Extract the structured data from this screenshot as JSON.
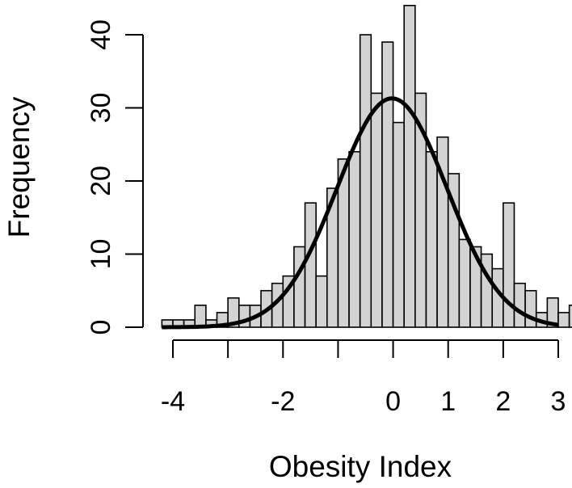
{
  "chart_data": {
    "type": "bar",
    "title": "",
    "xlabel": "Obesity Index",
    "ylabel": "Frequency",
    "bin_start": -4.2,
    "bin_width": 0.2,
    "values": [
      1,
      1,
      1,
      3,
      1,
      2,
      4,
      3,
      3,
      5,
      6,
      7,
      11,
      17,
      7,
      19,
      23,
      24,
      40,
      32,
      39,
      28,
      44,
      32,
      24,
      26,
      21,
      12,
      11,
      10,
      8,
      17,
      6,
      5,
      2,
      4,
      2,
      3
    ],
    "xlim": [
      -4.2,
      3.0
    ],
    "ylim": [
      0,
      44
    ],
    "x_ticks": [
      -4,
      -3,
      -2,
      -1,
      0,
      1,
      2,
      3
    ],
    "x_tick_labels": [
      "-4",
      "",
      "-2",
      "",
      "0",
      "1",
      "2",
      "3"
    ],
    "y_ticks": [
      0,
      10,
      20,
      30,
      40
    ],
    "y_tick_labels": [
      "0",
      "10",
      "20",
      "30",
      "40"
    ],
    "curve": {
      "type": "normal-density",
      "mean": -0.02,
      "peak": 31.3,
      "sd": 1.0
    },
    "grid": false,
    "bar_color": "#d3d3d3",
    "bar_edge_color": "#000000",
    "curve_color": "#000000"
  }
}
